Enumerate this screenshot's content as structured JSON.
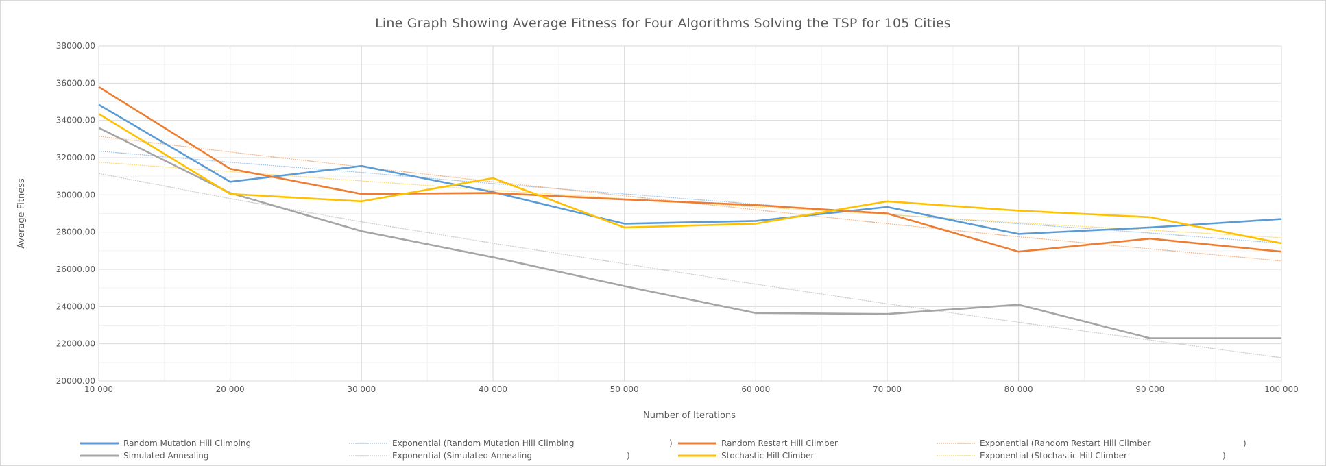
{
  "chart_data": {
    "type": "line",
    "title": "Line Graph Showing Average Fitness for Four Algorithms Solving the TSP for 105 Cities",
    "xlabel": "Number of Iterations",
    "ylabel": "Average Fitness",
    "x": [
      10000,
      20000,
      30000,
      40000,
      50000,
      60000,
      70000,
      80000,
      90000,
      100000
    ],
    "x_tick_labels": [
      "10 000",
      "20 000",
      "30 000",
      "40 000",
      "50 000",
      "60 000",
      "70 000",
      "80 000",
      "90 000",
      "100 000"
    ],
    "ylim": [
      20000,
      38000
    ],
    "y_ticks": [
      20000,
      22000,
      24000,
      26000,
      28000,
      30000,
      32000,
      34000,
      36000,
      38000
    ],
    "y_tick_labels": [
      "20000.00",
      "22000.00",
      "24000.00",
      "26000.00",
      "28000.00",
      "30000.00",
      "32000.00",
      "34000.00",
      "36000.00",
      "38000.00"
    ],
    "grid": "major and minor",
    "legend_position": "bottom",
    "series": [
      {
        "name": "Random Mutation Hill Climbing",
        "color": "#5b9bd5",
        "values": [
          34850,
          30700,
          31550,
          30150,
          28450,
          28600,
          29350,
          27900,
          28250,
          28700
        ]
      },
      {
        "name": "Random Restart Hill Climber",
        "color": "#ed7d31",
        "values": [
          35800,
          31400,
          30050,
          30100,
          29750,
          29450,
          29000,
          26950,
          27650,
          26950
        ]
      },
      {
        "name": "Simulated Annealing",
        "color": "#a5a5a5",
        "values": [
          33600,
          30100,
          28050,
          26650,
          25100,
          23650,
          23600,
          24100,
          22300,
          22300
        ]
      },
      {
        "name": "Stochastic Hill Climber",
        "color": "#ffc000",
        "values": [
          34350,
          30050,
          29650,
          30900,
          28250,
          28450,
          29650,
          29150,
          28800,
          27400
        ]
      }
    ],
    "trendlines": [
      {
        "name": "Exponential (Random Mutation Hill Climbing",
        "color": "#9dc3e6",
        "values": [
          32350,
          31750,
          31200,
          30600,
          30050,
          29500,
          28950,
          28450,
          27950,
          27400
        ]
      },
      {
        "name": "Exponential (Random Restart Hill Climber",
        "color": "#f4b183",
        "values": [
          33150,
          32300,
          31500,
          30700,
          29950,
          29200,
          28450,
          27750,
          27100,
          26450
        ]
      },
      {
        "name": "Exponential (Simulated Annealing",
        "color": "#c9c9c9",
        "values": [
          31150,
          29800,
          28550,
          27400,
          26300,
          25200,
          24150,
          23150,
          22200,
          21250
        ]
      },
      {
        "name": "Exponential (Stochastic Hill Climber",
        "color": "#ffd966",
        "values": [
          31750,
          31250,
          30750,
          30250,
          29800,
          29350,
          28950,
          28500,
          28100,
          27700
        ]
      }
    ]
  },
  "legend_closing_paren": ")"
}
